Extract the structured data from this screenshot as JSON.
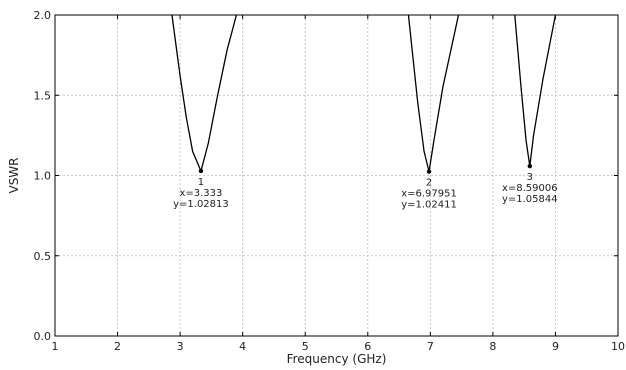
{
  "chart_data": {
    "type": "line",
    "title": "",
    "xlabel": "Frequency (GHz)",
    "ylabel": "VSWR",
    "xlim": [
      1,
      10
    ],
    "ylim": [
      0.0,
      2.0
    ],
    "grid": true,
    "x_ticks": [
      "1",
      "2",
      "3",
      "4",
      "5",
      "6",
      "7",
      "8",
      "9",
      "10"
    ],
    "y_ticks": [
      "0.0",
      "0.5",
      "1.0",
      "1.5",
      "2.0"
    ],
    "series": [
      {
        "name": "",
        "x": [
          2.87,
          3.0,
          3.1,
          3.2,
          3.333,
          3.45,
          3.6,
          3.75,
          3.9,
          6.65,
          6.8,
          6.9,
          6.97951,
          7.05,
          7.2,
          7.45,
          8.35,
          8.45,
          8.53,
          8.59006,
          8.65,
          8.8,
          9.0
        ],
        "y": [
          2.0,
          1.62,
          1.36,
          1.15,
          1.02813,
          1.2,
          1.5,
          1.78,
          2.0,
          2.0,
          1.45,
          1.15,
          1.02411,
          1.2,
          1.55,
          2.0,
          2.0,
          1.55,
          1.22,
          1.05844,
          1.25,
          1.6,
          2.0
        ],
        "segments": [
          [
            0,
            8
          ],
          [
            9,
            15
          ],
          [
            16,
            22
          ]
        ]
      }
    ],
    "markers": [
      {
        "label": "1",
        "x": 3.333,
        "y": 1.02813,
        "x_text": "x=3.333",
        "y_text": "y=1.02813"
      },
      {
        "label": "2",
        "x": 6.97951,
        "y": 1.02411,
        "x_text": "x=6.97951",
        "y_text": "y=1.02411"
      },
      {
        "label": "3",
        "x": 8.59006,
        "y": 1.05844,
        "x_text": "x=8.59006",
        "y_text": "y=1.05844"
      }
    ],
    "colors": {
      "line": "#000000",
      "grid": "#bbbbbb",
      "axis": "#000000"
    }
  }
}
